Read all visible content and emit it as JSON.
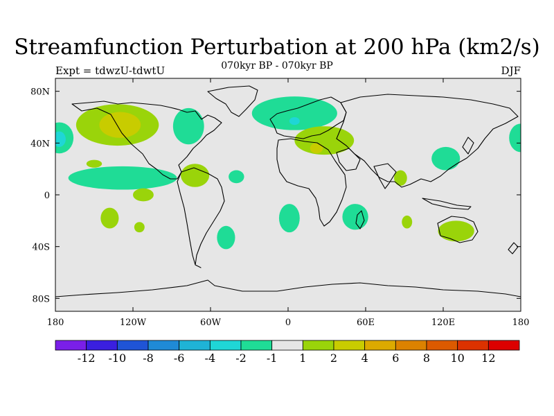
{
  "header": {
    "title": "Streamfunction Perturbation at 200 hPa (km2/s)",
    "subtitle": "070kyr BP - 070kyr BP",
    "left_label": "Expt = tdwzU-tdwtU",
    "right_label": "DJF"
  },
  "map": {
    "background_color": "#e6e6e6",
    "coastline_color": "#000000",
    "lat_ticks": [
      {
        "value": 80,
        "label": "80N"
      },
      {
        "value": 40,
        "label": "40N"
      },
      {
        "value": 0,
        "label": "0"
      },
      {
        "value": -40,
        "label": "40S"
      },
      {
        "value": -80,
        "label": "80S"
      }
    ],
    "lon_ticks": [
      {
        "value": -180,
        "label": "180"
      },
      {
        "value": -120,
        "label": "120W"
      },
      {
        "value": -60,
        "label": "60W"
      },
      {
        "value": 0,
        "label": "0"
      },
      {
        "value": 60,
        "label": "60E"
      },
      {
        "value": 120,
        "label": "120E"
      },
      {
        "value": 180,
        "label": "180"
      }
    ]
  },
  "colorbar": {
    "colors": [
      "#7a1fe8",
      "#3a1fe0",
      "#1f54d6",
      "#1f8ad6",
      "#1fb3d6",
      "#1fd6d6",
      "#1fdc96",
      "#e6e6e6",
      "#9ad40a",
      "#c8cc00",
      "#dcaa00",
      "#dc8200",
      "#dc5a00",
      "#dc3200",
      "#dc0000"
    ],
    "labels": [
      "-12",
      "-10",
      "-8",
      "-6",
      "-4",
      "-2",
      "-1",
      "1",
      "2",
      "4",
      "6",
      "8",
      "10",
      "12"
    ]
  },
  "anomalies": [
    {
      "name": "north-pacific-high",
      "level": "2",
      "color": "#9ad40a",
      "lon": -132,
      "lat": 54,
      "rx": 32,
      "ry": 16
    },
    {
      "name": "north-pacific-core",
      "level": "4",
      "color": "#c8cc00",
      "lon": -130,
      "lat": 54,
      "rx": 16,
      "ry": 10
    },
    {
      "name": "central-pacific-low",
      "level": "-2",
      "color": "#1fdc96",
      "lon": -177,
      "lat": 44,
      "rx": 11,
      "ry": 12
    },
    {
      "name": "central-pacific-core",
      "level": "-4",
      "color": "#1fd6d6",
      "lon": -177,
      "lat": 43,
      "rx": 5,
      "ry": 6
    },
    {
      "name": "east-pacific-low-band",
      "level": "-2",
      "color": "#1fdc96",
      "lon": -128,
      "lat": 13,
      "rx": 42,
      "ry": 9
    },
    {
      "name": "hudson-low",
      "level": "-2",
      "color": "#1fdc96",
      "lon": -77,
      "lat": 53,
      "rx": 12,
      "ry": 14
    },
    {
      "name": "caribbean-high",
      "level": "2",
      "color": "#9ad40a",
      "lon": -72,
      "lat": 15,
      "rx": 11,
      "ry": 9
    },
    {
      "name": "subtropical-pacific-high",
      "level": "2",
      "color": "#9ad40a",
      "lon": -150,
      "lat": 24,
      "rx": 6,
      "ry": 3
    },
    {
      "name": "east-pacific-high",
      "level": "2",
      "color": "#9ad40a",
      "lon": -112,
      "lat": 0,
      "rx": 8,
      "ry": 5
    },
    {
      "name": "atlantic-low",
      "level": "-2",
      "color": "#1fdc96",
      "lon": -40,
      "lat": 14,
      "rx": 6,
      "ry": 5
    },
    {
      "name": "south-pacific-high",
      "level": "2",
      "color": "#9ad40a",
      "lon": -138,
      "lat": -18,
      "rx": 7,
      "ry": 8
    },
    {
      "name": "south-pacific-high-small",
      "level": "2",
      "color": "#9ad40a",
      "lon": -115,
      "lat": -25,
      "rx": 4,
      "ry": 4
    },
    {
      "name": "south-atlantic-low",
      "level": "-2",
      "color": "#1fdc96",
      "lon": -48,
      "lat": -33,
      "rx": 7,
      "ry": 9
    },
    {
      "name": "north-atlantic-low",
      "level": "-2",
      "color": "#1fdc96",
      "lon": 5,
      "lat": 63,
      "rx": 33,
      "ry": 13
    },
    {
      "name": "north-atlantic-core",
      "level": "-4",
      "color": "#1fd6d6",
      "lon": 5,
      "lat": 57,
      "rx": 4,
      "ry": 3
    },
    {
      "name": "mediterranean-high",
      "level": "2",
      "color": "#9ad40a",
      "lon": 28,
      "lat": 42,
      "rx": 23,
      "ry": 11
    },
    {
      "name": "mediterranean-core",
      "level": "4",
      "color": "#c8cc00",
      "lon": 22,
      "lat": 36,
      "rx": 5,
      "ry": 4
    },
    {
      "name": "india-high",
      "level": "2",
      "color": "#9ad40a",
      "lon": 87,
      "lat": 13,
      "rx": 5,
      "ry": 6
    },
    {
      "name": "east-asia-low",
      "level": "-2",
      "color": "#1fdc96",
      "lon": 122,
      "lat": 28,
      "rx": 11,
      "ry": 9
    },
    {
      "name": "west-pacific-low",
      "level": "-2",
      "color": "#1fdc96",
      "lon": 180,
      "lat": 44,
      "rx": 9,
      "ry": 11
    },
    {
      "name": "south-atlantic-low-2",
      "level": "-2",
      "color": "#1fdc96",
      "lon": 1,
      "lat": -18,
      "rx": 8,
      "ry": 11
    },
    {
      "name": "madagascar-low",
      "level": "-2",
      "color": "#1fdc96",
      "lon": 52,
      "lat": -17,
      "rx": 10,
      "ry": 10
    },
    {
      "name": "indian-ocean-high",
      "level": "2",
      "color": "#9ad40a",
      "lon": 92,
      "lat": -21,
      "rx": 4,
      "ry": 5
    },
    {
      "name": "australia-high",
      "level": "2",
      "color": "#9ad40a",
      "lon": 130,
      "lat": -28,
      "rx": 14,
      "ry": 8
    }
  ]
}
